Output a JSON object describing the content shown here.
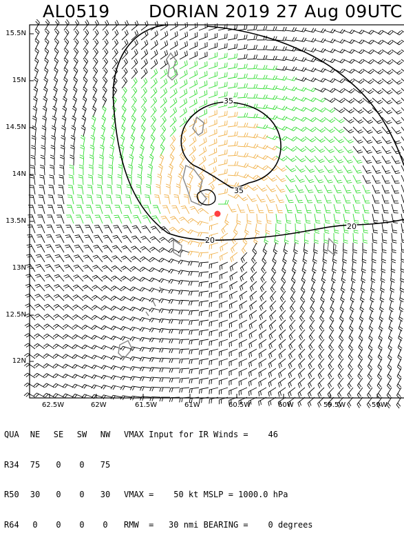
{
  "title": {
    "storm_id": "AL0519",
    "storm_info": "DORIAN 2019 27 Aug 09UTC"
  },
  "axes": {
    "lat_labels": [
      "15.5N",
      "15N",
      "14.5N",
      "14N",
      "13.5N",
      "13N",
      "12.5N",
      "12N"
    ],
    "lon_labels": [
      "62.5W",
      "62W",
      "61.5W",
      "61W",
      "60.5W",
      "60W",
      "59.5W",
      "59W"
    ]
  },
  "contours": [
    {
      "label": "20",
      "color": "#000000"
    },
    {
      "label": "35",
      "color": "#000000"
    }
  ],
  "colors": {
    "barb_default": "#000000",
    "barb_ts": "#33dd33",
    "barb_strong": "#f0b048",
    "coast": "#8a8a8a",
    "center": "#ff4040"
  },
  "table": {
    "header": [
      "QUA",
      "NE",
      "SE",
      "SW",
      "NW"
    ],
    "rows": [
      {
        "name": "R34",
        "values": [
          "75",
          "0",
          "0",
          "75"
        ]
      },
      {
        "name": "R50",
        "values": [
          "30",
          "0",
          "0",
          "30"
        ]
      },
      {
        "name": "R64",
        "values": [
          "0",
          "0",
          "0",
          "0"
        ]
      }
    ],
    "line1": "VMAX Input for IR Winds =    46",
    "line2": "VMAX =    50 kt MSLP = 1000.0 hPa",
    "line3": "RMW  =   30 nmi BEARING =    0 degrees"
  }
}
